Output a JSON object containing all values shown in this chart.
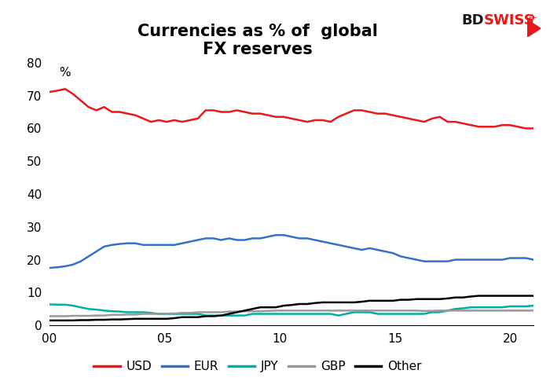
{
  "title": "Currencies as % of  global\nFX reserves",
  "ylabel": "%",
  "xlim": [
    0,
    21
  ],
  "ylim": [
    0,
    80
  ],
  "yticks": [
    0,
    10,
    20,
    30,
    40,
    50,
    60,
    70,
    80
  ],
  "xticks": [
    0,
    5,
    10,
    15,
    20
  ],
  "xticklabels": [
    "00",
    "05",
    "10",
    "15",
    "20"
  ],
  "background_color": "#ffffff",
  "title_fontsize": 15,
  "colors": {
    "USD": "#e8191a",
    "EUR": "#3671c6",
    "JPY": "#00b0a0",
    "GBP": "#999999",
    "Other": "#000000"
  },
  "USD": [
    71.1,
    71.5,
    72.0,
    70.5,
    68.5,
    66.5,
    65.5,
    66.5,
    65.0,
    65.0,
    64.5,
    64.0,
    63.0,
    62.0,
    62.5,
    62.0,
    62.5,
    62.0,
    62.5,
    63.0,
    65.5,
    65.5,
    65.0,
    65.0,
    65.5,
    65.0,
    64.5,
    64.5,
    64.0,
    63.5,
    63.5,
    63.0,
    62.5,
    62.0,
    62.5,
    62.5,
    62.0,
    63.5,
    64.5,
    65.5,
    65.5,
    65.0,
    64.5,
    64.5,
    64.0,
    63.5,
    63.0,
    62.5,
    62.0,
    63.0,
    63.5,
    62.0,
    62.0,
    61.5,
    61.0,
    60.5,
    60.5,
    60.5,
    61.0,
    61.0,
    60.5,
    60.0,
    60.0
  ],
  "EUR": [
    17.5,
    17.7,
    18.0,
    18.5,
    19.5,
    21.0,
    22.5,
    24.0,
    24.5,
    24.8,
    25.0,
    25.0,
    24.5,
    24.5,
    24.5,
    24.5,
    24.5,
    25.0,
    25.5,
    26.0,
    26.5,
    26.5,
    26.0,
    26.5,
    26.0,
    26.0,
    26.5,
    26.5,
    27.0,
    27.5,
    27.5,
    27.0,
    26.5,
    26.5,
    26.0,
    25.5,
    25.0,
    24.5,
    24.0,
    23.5,
    23.0,
    23.5,
    23.0,
    22.5,
    22.0,
    21.0,
    20.5,
    20.0,
    19.5,
    19.5,
    19.5,
    19.5,
    20.0,
    20.0,
    20.0,
    20.0,
    20.0,
    20.0,
    20.0,
    20.5,
    20.5,
    20.5,
    20.0
  ],
  "JPY": [
    6.4,
    6.3,
    6.3,
    6.0,
    5.5,
    5.0,
    4.8,
    4.5,
    4.3,
    4.2,
    4.0,
    4.0,
    4.0,
    3.8,
    3.5,
    3.5,
    3.5,
    3.5,
    3.5,
    3.5,
    3.0,
    3.0,
    3.0,
    3.0,
    3.0,
    3.0,
    3.5,
    3.5,
    3.5,
    3.5,
    3.5,
    3.5,
    3.5,
    3.5,
    3.5,
    3.5,
    3.5,
    3.0,
    3.5,
    4.0,
    4.0,
    4.0,
    3.5,
    3.5,
    3.5,
    3.5,
    3.5,
    3.5,
    3.5,
    4.0,
    4.0,
    4.5,
    5.0,
    5.2,
    5.5,
    5.5,
    5.5,
    5.5,
    5.5,
    5.8,
    5.8,
    5.8,
    6.0
  ],
  "GBP": [
    2.8,
    2.8,
    2.8,
    2.9,
    2.9,
    2.9,
    3.0,
    3.0,
    3.2,
    3.2,
    3.3,
    3.3,
    3.5,
    3.5,
    3.5,
    3.6,
    3.6,
    3.8,
    3.8,
    4.0,
    4.0,
    4.0,
    4.0,
    4.2,
    4.2,
    4.3,
    4.3,
    4.3,
    4.4,
    4.5,
    4.5,
    4.5,
    4.5,
    4.5,
    4.5,
    4.5,
    4.5,
    4.5,
    4.5,
    4.5,
    4.5,
    4.5,
    4.5,
    4.5,
    4.5,
    4.5,
    4.5,
    4.5,
    4.4,
    4.4,
    4.5,
    4.5,
    4.5,
    4.5,
    4.5,
    4.5,
    4.5,
    4.5,
    4.5,
    4.5,
    4.5,
    4.5,
    4.5
  ],
  "Other": [
    1.5,
    1.5,
    1.5,
    1.5,
    1.6,
    1.6,
    1.7,
    1.7,
    1.8,
    1.8,
    1.9,
    2.0,
    2.0,
    2.0,
    2.0,
    2.0,
    2.2,
    2.5,
    2.5,
    2.5,
    2.8,
    2.8,
    3.0,
    3.5,
    4.0,
    4.5,
    5.0,
    5.5,
    5.5,
    5.5,
    6.0,
    6.2,
    6.5,
    6.5,
    6.8,
    7.0,
    7.0,
    7.0,
    7.0,
    7.0,
    7.2,
    7.5,
    7.5,
    7.5,
    7.5,
    7.8,
    7.8,
    8.0,
    8.0,
    8.0,
    8.0,
    8.2,
    8.5,
    8.5,
    8.8,
    9.0,
    9.0,
    9.0,
    9.0,
    9.0,
    9.0,
    9.0,
    9.0
  ],
  "line_width": 1.8
}
